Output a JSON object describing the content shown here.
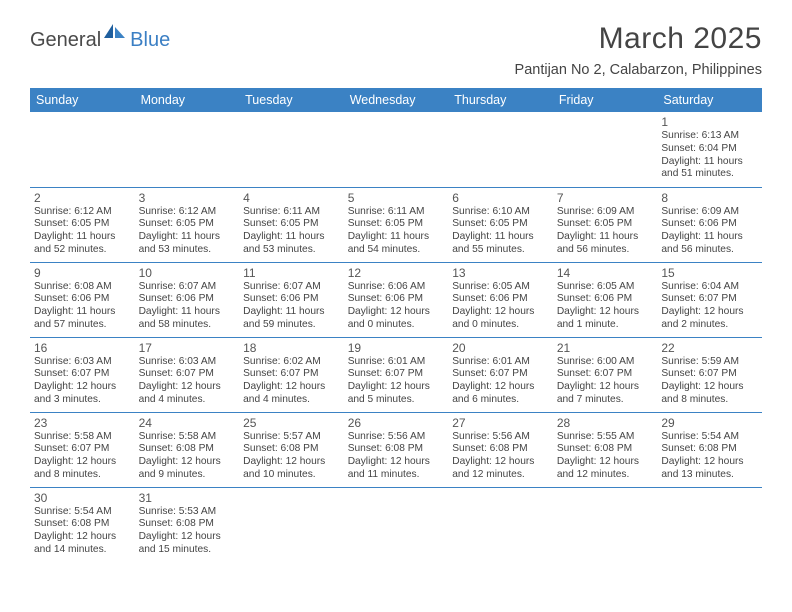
{
  "logo": {
    "text1": "General",
    "text2": "Blue"
  },
  "title": "March 2025",
  "subtitle": "Pantijan No 2, Calabarzon, Philippines",
  "colors": {
    "header_bg": "#3b82c4",
    "header_fg": "#ffffff",
    "rule": "#3b82c4",
    "text": "#444444"
  },
  "days": [
    "Sunday",
    "Monday",
    "Tuesday",
    "Wednesday",
    "Thursday",
    "Friday",
    "Saturday"
  ],
  "cell_fontsize": 10.2,
  "daynum_fontsize": 12,
  "weeks": [
    [
      null,
      null,
      null,
      null,
      null,
      null,
      {
        "n": "1",
        "sr": "Sunrise: 6:13 AM",
        "ss": "Sunset: 6:04 PM",
        "dl": "Daylight: 11 hours and 51 minutes."
      }
    ],
    [
      {
        "n": "2",
        "sr": "Sunrise: 6:12 AM",
        "ss": "Sunset: 6:05 PM",
        "dl": "Daylight: 11 hours and 52 minutes."
      },
      {
        "n": "3",
        "sr": "Sunrise: 6:12 AM",
        "ss": "Sunset: 6:05 PM",
        "dl": "Daylight: 11 hours and 53 minutes."
      },
      {
        "n": "4",
        "sr": "Sunrise: 6:11 AM",
        "ss": "Sunset: 6:05 PM",
        "dl": "Daylight: 11 hours and 53 minutes."
      },
      {
        "n": "5",
        "sr": "Sunrise: 6:11 AM",
        "ss": "Sunset: 6:05 PM",
        "dl": "Daylight: 11 hours and 54 minutes."
      },
      {
        "n": "6",
        "sr": "Sunrise: 6:10 AM",
        "ss": "Sunset: 6:05 PM",
        "dl": "Daylight: 11 hours and 55 minutes."
      },
      {
        "n": "7",
        "sr": "Sunrise: 6:09 AM",
        "ss": "Sunset: 6:05 PM",
        "dl": "Daylight: 11 hours and 56 minutes."
      },
      {
        "n": "8",
        "sr": "Sunrise: 6:09 AM",
        "ss": "Sunset: 6:06 PM",
        "dl": "Daylight: 11 hours and 56 minutes."
      }
    ],
    [
      {
        "n": "9",
        "sr": "Sunrise: 6:08 AM",
        "ss": "Sunset: 6:06 PM",
        "dl": "Daylight: 11 hours and 57 minutes."
      },
      {
        "n": "10",
        "sr": "Sunrise: 6:07 AM",
        "ss": "Sunset: 6:06 PM",
        "dl": "Daylight: 11 hours and 58 minutes."
      },
      {
        "n": "11",
        "sr": "Sunrise: 6:07 AM",
        "ss": "Sunset: 6:06 PM",
        "dl": "Daylight: 11 hours and 59 minutes."
      },
      {
        "n": "12",
        "sr": "Sunrise: 6:06 AM",
        "ss": "Sunset: 6:06 PM",
        "dl": "Daylight: 12 hours and 0 minutes."
      },
      {
        "n": "13",
        "sr": "Sunrise: 6:05 AM",
        "ss": "Sunset: 6:06 PM",
        "dl": "Daylight: 12 hours and 0 minutes."
      },
      {
        "n": "14",
        "sr": "Sunrise: 6:05 AM",
        "ss": "Sunset: 6:06 PM",
        "dl": "Daylight: 12 hours and 1 minute."
      },
      {
        "n": "15",
        "sr": "Sunrise: 6:04 AM",
        "ss": "Sunset: 6:07 PM",
        "dl": "Daylight: 12 hours and 2 minutes."
      }
    ],
    [
      {
        "n": "16",
        "sr": "Sunrise: 6:03 AM",
        "ss": "Sunset: 6:07 PM",
        "dl": "Daylight: 12 hours and 3 minutes."
      },
      {
        "n": "17",
        "sr": "Sunrise: 6:03 AM",
        "ss": "Sunset: 6:07 PM",
        "dl": "Daylight: 12 hours and 4 minutes."
      },
      {
        "n": "18",
        "sr": "Sunrise: 6:02 AM",
        "ss": "Sunset: 6:07 PM",
        "dl": "Daylight: 12 hours and 4 minutes."
      },
      {
        "n": "19",
        "sr": "Sunrise: 6:01 AM",
        "ss": "Sunset: 6:07 PM",
        "dl": "Daylight: 12 hours and 5 minutes."
      },
      {
        "n": "20",
        "sr": "Sunrise: 6:01 AM",
        "ss": "Sunset: 6:07 PM",
        "dl": "Daylight: 12 hours and 6 minutes."
      },
      {
        "n": "21",
        "sr": "Sunrise: 6:00 AM",
        "ss": "Sunset: 6:07 PM",
        "dl": "Daylight: 12 hours and 7 minutes."
      },
      {
        "n": "22",
        "sr": "Sunrise: 5:59 AM",
        "ss": "Sunset: 6:07 PM",
        "dl": "Daylight: 12 hours and 8 minutes."
      }
    ],
    [
      {
        "n": "23",
        "sr": "Sunrise: 5:58 AM",
        "ss": "Sunset: 6:07 PM",
        "dl": "Daylight: 12 hours and 8 minutes."
      },
      {
        "n": "24",
        "sr": "Sunrise: 5:58 AM",
        "ss": "Sunset: 6:08 PM",
        "dl": "Daylight: 12 hours and 9 minutes."
      },
      {
        "n": "25",
        "sr": "Sunrise: 5:57 AM",
        "ss": "Sunset: 6:08 PM",
        "dl": "Daylight: 12 hours and 10 minutes."
      },
      {
        "n": "26",
        "sr": "Sunrise: 5:56 AM",
        "ss": "Sunset: 6:08 PM",
        "dl": "Daylight: 12 hours and 11 minutes."
      },
      {
        "n": "27",
        "sr": "Sunrise: 5:56 AM",
        "ss": "Sunset: 6:08 PM",
        "dl": "Daylight: 12 hours and 12 minutes."
      },
      {
        "n": "28",
        "sr": "Sunrise: 5:55 AM",
        "ss": "Sunset: 6:08 PM",
        "dl": "Daylight: 12 hours and 12 minutes."
      },
      {
        "n": "29",
        "sr": "Sunrise: 5:54 AM",
        "ss": "Sunset: 6:08 PM",
        "dl": "Daylight: 12 hours and 13 minutes."
      }
    ],
    [
      {
        "n": "30",
        "sr": "Sunrise: 5:54 AM",
        "ss": "Sunset: 6:08 PM",
        "dl": "Daylight: 12 hours and 14 minutes."
      },
      {
        "n": "31",
        "sr": "Sunrise: 5:53 AM",
        "ss": "Sunset: 6:08 PM",
        "dl": "Daylight: 12 hours and 15 minutes."
      },
      null,
      null,
      null,
      null,
      null
    ]
  ]
}
